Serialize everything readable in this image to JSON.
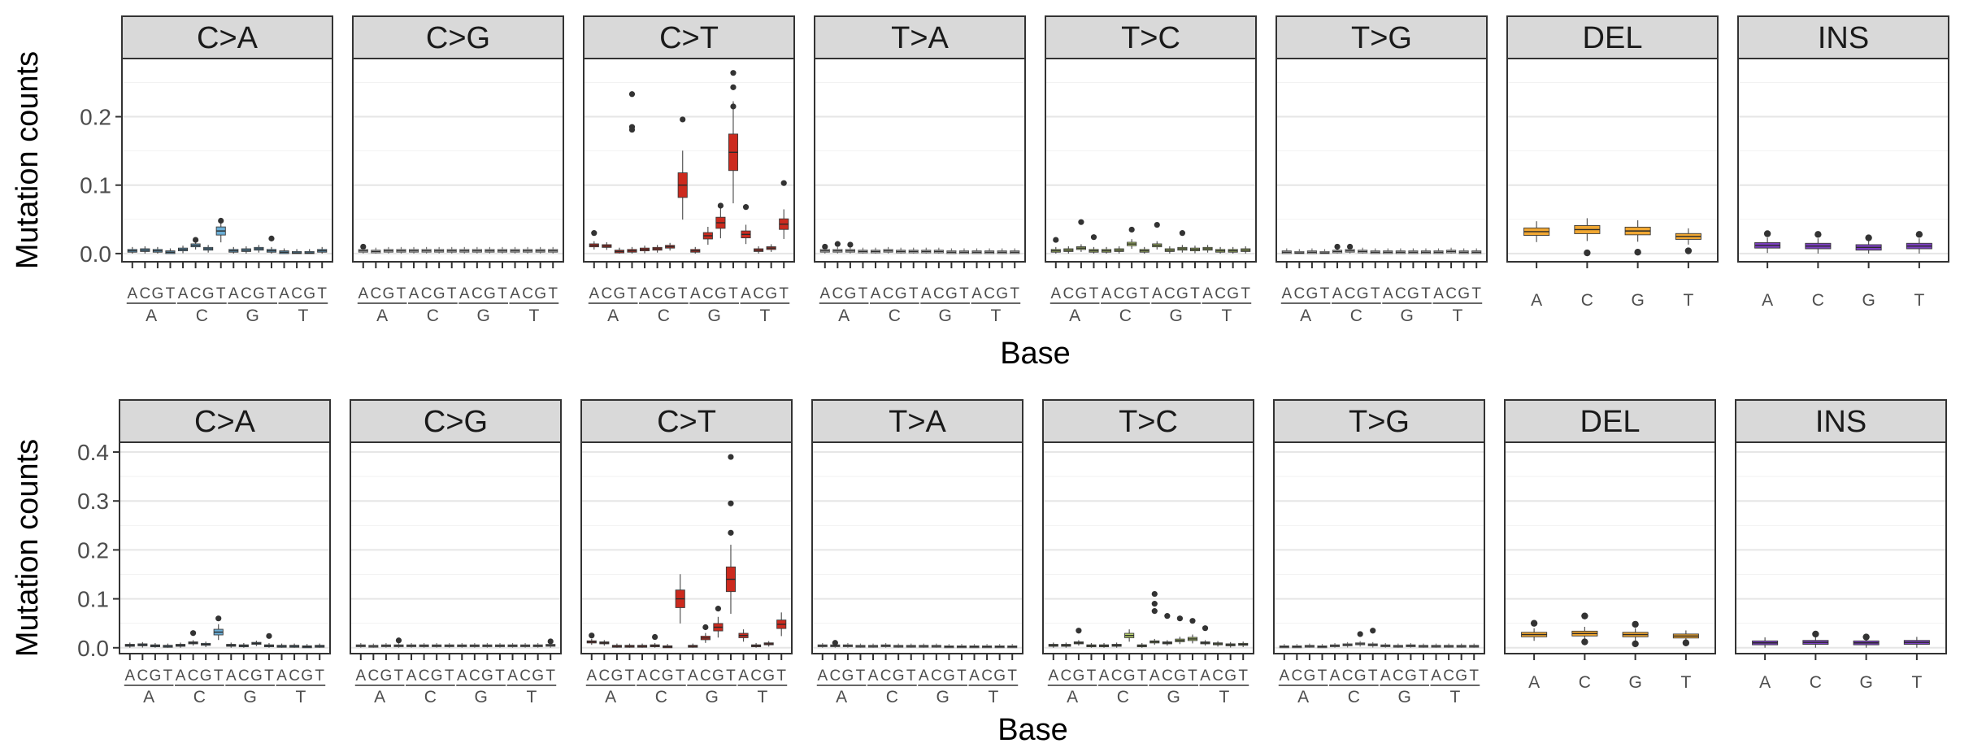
{
  "chart_data": [
    {
      "type": "boxplot",
      "ylabel": "Mutation counts",
      "xlabel": "Base",
      "ylim": [
        -0.012,
        0.285
      ],
      "yticks": [
        0.0,
        0.1,
        0.2
      ],
      "ytick_labels": [
        "0.0",
        "0.1",
        "0.2"
      ],
      "grid": true,
      "facets": [
        {
          "label": "C>A",
          "kind": "context",
          "color": "#6baed6",
          "medians": [
            0.004,
            0.005,
            0.004,
            0.002,
            0.006,
            0.012,
            0.007,
            0.033,
            0.004,
            0.005,
            0.007,
            0.004,
            0.002,
            0.001,
            0.001,
            0.004
          ],
          "outliers": [
            [
              7,
              0.048
            ],
            [
              11,
              0.022
            ],
            [
              5,
              0.02
            ]
          ]
        },
        {
          "label": "C>G",
          "kind": "context",
          "color": "#888888",
          "medians": [
            0.004,
            0.003,
            0.004,
            0.004,
            0.004,
            0.004,
            0.004,
            0.004,
            0.004,
            0.004,
            0.004,
            0.004,
            0.004,
            0.004,
            0.004,
            0.004
          ],
          "outliers": [
            [
              0,
              0.01
            ]
          ]
        },
        {
          "label": "C>T",
          "kind": "context",
          "color": "#cc2a1e",
          "medians": [
            0.012,
            0.011,
            0.003,
            0.004,
            0.006,
            0.007,
            0.01,
            0.1,
            0.004,
            0.026,
            0.045,
            0.148,
            0.028,
            0.005,
            0.008,
            0.043
          ],
          "outliers": [
            [
              3,
              0.233
            ],
            [
              3,
              0.185
            ],
            [
              3,
              0.181
            ],
            [
              7,
              0.196
            ],
            [
              11,
              0.264
            ],
            [
              11,
              0.243
            ],
            [
              11,
              0.215
            ],
            [
              10,
              0.07
            ],
            [
              12,
              0.068
            ],
            [
              15,
              0.103
            ],
            [
              0,
              0.03
            ]
          ]
        },
        {
          "label": "T>A",
          "kind": "context",
          "color": "#888888",
          "medians": [
            0.004,
            0.004,
            0.004,
            0.003,
            0.003,
            0.004,
            0.003,
            0.003,
            0.003,
            0.003,
            0.002,
            0.002,
            0.002,
            0.002,
            0.002,
            0.002
          ],
          "outliers": [
            [
              1,
              0.014
            ],
            [
              2,
              0.013
            ],
            [
              0,
              0.01
            ]
          ]
        },
        {
          "label": "T>C",
          "kind": "context",
          "color": "#b5cf6b",
          "medians": [
            0.004,
            0.005,
            0.008,
            0.004,
            0.004,
            0.005,
            0.014,
            0.004,
            0.012,
            0.005,
            0.007,
            0.006,
            0.007,
            0.004,
            0.004,
            0.005
          ],
          "outliers": [
            [
              2,
              0.046
            ],
            [
              8,
              0.042
            ],
            [
              6,
              0.035
            ],
            [
              10,
              0.03
            ],
            [
              0,
              0.02
            ],
            [
              3,
              0.024
            ]
          ]
        },
        {
          "label": "T>G",
          "kind": "context",
          "color": "#888888",
          "medians": [
            0.002,
            0.001,
            0.002,
            0.001,
            0.003,
            0.004,
            0.003,
            0.002,
            0.002,
            0.002,
            0.002,
            0.002,
            0.002,
            0.003,
            0.002,
            0.002
          ],
          "outliers": [
            [
              4,
              0.01
            ],
            [
              5,
              0.01
            ]
          ]
        },
        {
          "label": "DEL",
          "kind": "base",
          "color": "#f0a732",
          "medians": [
            0.032,
            0.035,
            0.033,
            0.025
          ],
          "outliers": [
            [
              1,
              0.001
            ],
            [
              2,
              0.002
            ],
            [
              3,
              0.004
            ]
          ]
        },
        {
          "label": "INS",
          "kind": "base",
          "color": "#7b3fbf",
          "medians": [
            0.012,
            0.011,
            0.009,
            0.011
          ],
          "outliers": [
            [
              0,
              0.029
            ],
            [
              1,
              0.028
            ],
            [
              2,
              0.023
            ],
            [
              3,
              0.028
            ]
          ]
        }
      ],
      "x_context_labels": [
        "A",
        "C",
        "G",
        "T"
      ],
      "x_outer_labels": [
        "A",
        "C",
        "G",
        "T"
      ]
    },
    {
      "type": "boxplot",
      "ylabel": "Mutation counts",
      "xlabel": "Base",
      "ylim": [
        -0.012,
        0.42
      ],
      "yticks": [
        0.0,
        0.1,
        0.2,
        0.3,
        0.4
      ],
      "ytick_labels": [
        "0.0",
        "0.1",
        "0.2",
        "0.3",
        "0.4"
      ],
      "grid": true,
      "facets": [
        {
          "label": "C>A",
          "kind": "context",
          "color": "#6baed6",
          "medians": [
            0.005,
            0.006,
            0.004,
            0.003,
            0.005,
            0.01,
            0.007,
            0.032,
            0.005,
            0.004,
            0.009,
            0.004,
            0.003,
            0.003,
            0.002,
            0.003
          ],
          "outliers": [
            [
              7,
              0.06
            ],
            [
              5,
              0.03
            ],
            [
              11,
              0.024
            ]
          ]
        },
        {
          "label": "C>G",
          "kind": "context",
          "color": "#888888",
          "medians": [
            0.004,
            0.003,
            0.004,
            0.004,
            0.004,
            0.004,
            0.004,
            0.004,
            0.004,
            0.004,
            0.004,
            0.004,
            0.004,
            0.004,
            0.004,
            0.005
          ],
          "outliers": [
            [
              3,
              0.015
            ],
            [
              15,
              0.013
            ]
          ]
        },
        {
          "label": "C>T",
          "kind": "context",
          "color": "#cc2a1e",
          "medians": [
            0.012,
            0.01,
            0.003,
            0.003,
            0.003,
            0.004,
            0.002,
            0.1,
            0.003,
            0.02,
            0.042,
            0.14,
            0.025,
            0.004,
            0.008,
            0.048
          ],
          "outliers": [
            [
              11,
              0.39
            ],
            [
              11,
              0.295
            ],
            [
              11,
              0.235
            ],
            [
              10,
              0.08
            ],
            [
              9,
              0.042
            ],
            [
              0,
              0.025
            ],
            [
              5,
              0.022
            ]
          ]
        },
        {
          "label": "T>A",
          "kind": "context",
          "color": "#888888",
          "medians": [
            0.004,
            0.004,
            0.004,
            0.003,
            0.003,
            0.004,
            0.003,
            0.003,
            0.003,
            0.003,
            0.002,
            0.002,
            0.002,
            0.002,
            0.002,
            0.002
          ],
          "outliers": [
            [
              1,
              0.01
            ]
          ]
        },
        {
          "label": "T>C",
          "kind": "context",
          "color": "#b5cf6b",
          "medians": [
            0.005,
            0.005,
            0.01,
            0.004,
            0.004,
            0.005,
            0.025,
            0.004,
            0.012,
            0.01,
            0.015,
            0.018,
            0.01,
            0.008,
            0.006,
            0.007
          ],
          "outliers": [
            [
              8,
              0.11
            ],
            [
              8,
              0.09
            ],
            [
              8,
              0.075
            ],
            [
              9,
              0.065
            ],
            [
              10,
              0.06
            ],
            [
              11,
              0.055
            ],
            [
              12,
              0.04
            ],
            [
              2,
              0.035
            ]
          ]
        },
        {
          "label": "T>G",
          "kind": "context",
          "color": "#888888",
          "medians": [
            0.002,
            0.002,
            0.003,
            0.002,
            0.004,
            0.006,
            0.008,
            0.006,
            0.004,
            0.003,
            0.004,
            0.003,
            0.003,
            0.003,
            0.003,
            0.003
          ],
          "outliers": [
            [
              7,
              0.035
            ],
            [
              6,
              0.028
            ]
          ]
        },
        {
          "label": "DEL",
          "kind": "base",
          "color": "#f0a732",
          "medians": [
            0.027,
            0.029,
            0.027,
            0.024
          ],
          "outliers": [
            [
              0,
              0.05
            ],
            [
              1,
              0.065
            ],
            [
              2,
              0.048
            ],
            [
              1,
              0.012
            ],
            [
              2,
              0.008
            ],
            [
              3,
              0.01
            ]
          ]
        },
        {
          "label": "INS",
          "kind": "base",
          "color": "#7b3fbf",
          "medians": [
            0.01,
            0.011,
            0.01,
            0.011
          ],
          "outliers": [
            [
              1,
              0.028
            ],
            [
              2,
              0.022
            ]
          ]
        }
      ],
      "x_context_labels": [
        "A",
        "C",
        "G",
        "T"
      ],
      "x_outer_labels": [
        "A",
        "C",
        "G",
        "T"
      ]
    }
  ]
}
